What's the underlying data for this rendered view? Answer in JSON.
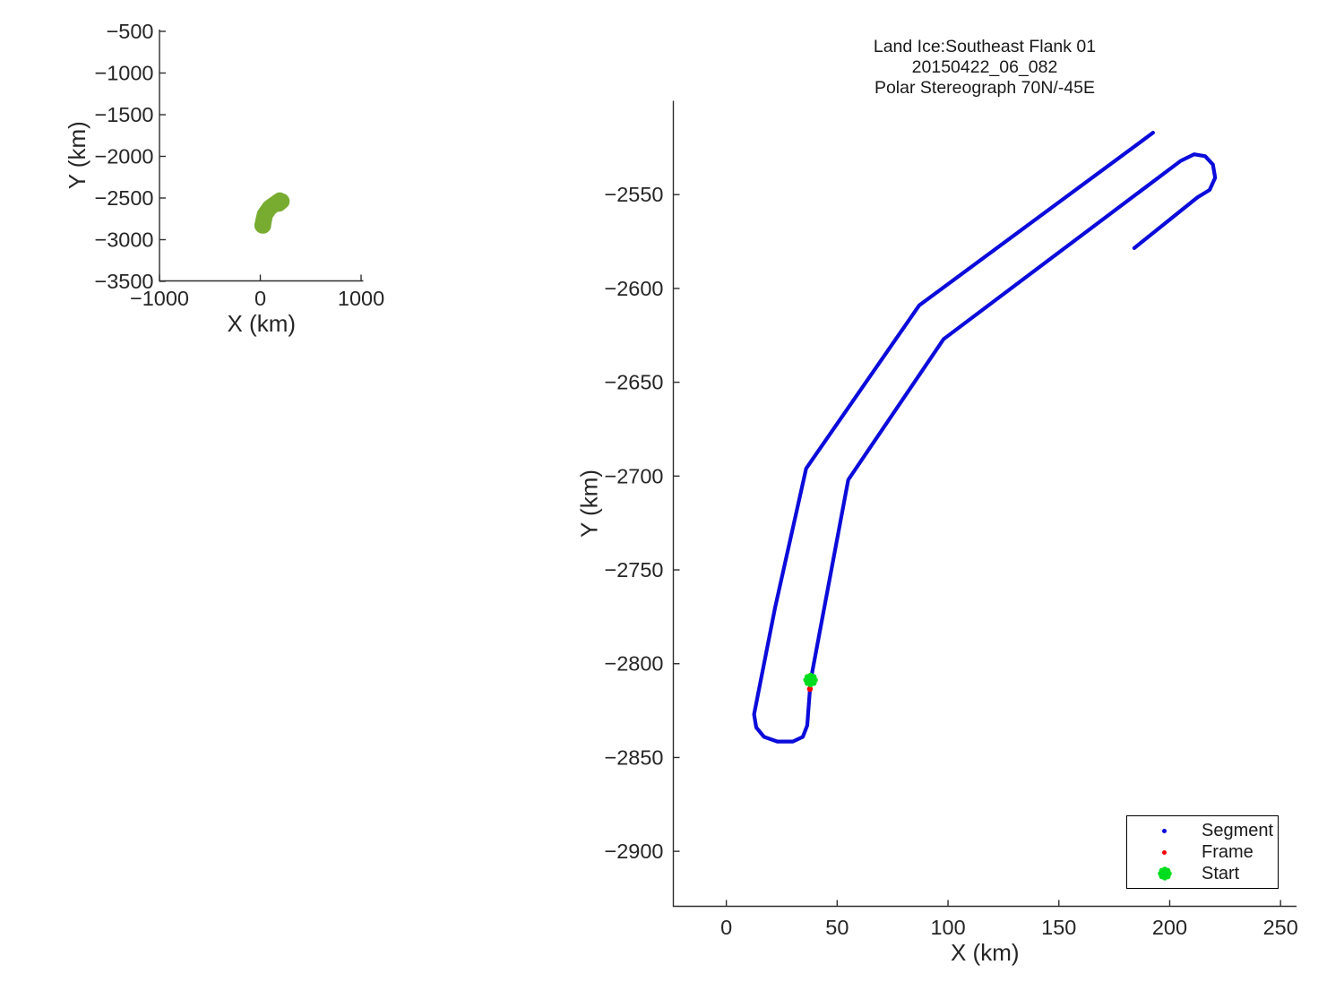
{
  "title": {
    "line1": "Land Ice:Southeast Flank 01",
    "line2": "20150422_06_082",
    "line3": "Polar Stereograph 70N/-45E"
  },
  "colors": {
    "segment": "#0b0bdb",
    "frame": "#ff0000",
    "start": "#00dd1e",
    "overview_track": "#77ac30",
    "axis": "#2e2e2e",
    "text": "#262626"
  },
  "track_points": [
    [
      192.5,
      -2517
    ],
    [
      87,
      -2609
    ],
    [
      36,
      -2696
    ],
    [
      22,
      -2770
    ],
    [
      14,
      -2818
    ],
    [
      12.5,
      -2827
    ],
    [
      13.5,
      -2834
    ],
    [
      17,
      -2839
    ],
    [
      23,
      -2841.5
    ],
    [
      30,
      -2841.5
    ],
    [
      34.5,
      -2839
    ],
    [
      36.5,
      -2833
    ],
    [
      38,
      -2809
    ],
    [
      55,
      -2702
    ],
    [
      98,
      -2627
    ],
    [
      205,
      -2532
    ],
    [
      211,
      -2528.5
    ],
    [
      216,
      -2529.5
    ],
    [
      219.5,
      -2534
    ],
    [
      220.5,
      -2541
    ],
    [
      218,
      -2547.5
    ],
    [
      212.5,
      -2551.5
    ],
    [
      184,
      -2578.5
    ]
  ],
  "start_point": [
    38,
    -2808.7
  ],
  "frame_point": [
    37.7,
    -2813.5
  ],
  "chart_data": [
    {
      "name": "overview",
      "type": "line",
      "xlabel": "X (km)",
      "ylabel": "Y (km)",
      "xlim": [
        -1000,
        1022
      ],
      "ylim": [
        -3494.6,
        -478.5
      ],
      "grid": false,
      "xticks": [
        {
          "v": -1000,
          "t": "−1000"
        },
        {
          "v": 0,
          "t": "0"
        },
        {
          "v": 1000,
          "t": "1000"
        }
      ],
      "yticks": [
        {
          "v": -500,
          "t": "−500"
        },
        {
          "v": -1000,
          "t": "−1000"
        },
        {
          "v": -1500,
          "t": "−1500"
        },
        {
          "v": -2000,
          "t": "−2000"
        },
        {
          "v": -2500,
          "t": "−2500"
        },
        {
          "v": -3000,
          "t": "−3000"
        },
        {
          "v": -3500,
          "t": "−3500"
        }
      ],
      "layout": {
        "box": {
          "l": 178,
          "r": 405.5,
          "t": 33,
          "b": 313.5
        },
        "xtick_dy": 27.5,
        "ytick_dx": 6.5,
        "xlabel_dy": 56.5,
        "ylabel_dx": 83
      },
      "series": [
        {
          "name": "overview-track-line",
          "points_ref": "track_points",
          "color": "overview_track",
          "width": 16
        }
      ],
      "markers": []
    },
    {
      "name": "main",
      "type": "line",
      "xlabel": "X (km)",
      "ylabel": "Y (km)",
      "xlim": [
        -23.9,
        257.2
      ],
      "ylim": [
        -2929.3,
        -2500.0
      ],
      "grid": false,
      "xticks": [
        {
          "v": 0,
          "t": "0"
        },
        {
          "v": 50,
          "t": "50"
        },
        {
          "v": 100,
          "t": "100"
        },
        {
          "v": 150,
          "t": "150"
        },
        {
          "v": 200,
          "t": "200"
        },
        {
          "v": 250,
          "t": "250"
        }
      ],
      "yticks": [
        {
          "v": -2550,
          "t": "−2550"
        },
        {
          "v": -2600,
          "t": "−2600"
        },
        {
          "v": -2650,
          "t": "−2650"
        },
        {
          "v": -2700,
          "t": "−2700"
        },
        {
          "v": -2750,
          "t": "−2750"
        },
        {
          "v": -2800,
          "t": "−2800"
        },
        {
          "v": -2850,
          "t": "−2850"
        },
        {
          "v": -2900,
          "t": "−2900"
        }
      ],
      "layout": {
        "box": {
          "l": 751.5,
          "r": 1447,
          "t": 112.5,
          "b": 1011.5
        },
        "xtick_dy": 31.5,
        "ytick_dx": 11,
        "xlabel_dy": 60.5,
        "ylabel_dx": 85
      },
      "series": [
        {
          "name": "segment-track-line",
          "points_ref": "track_points",
          "color": "segment",
          "width": 4.2
        }
      ],
      "markers": [
        {
          "name": "frame-marker",
          "point_ref": "frame_point",
          "shape": "dot",
          "color": "frame",
          "r": 3.2
        },
        {
          "name": "start-marker",
          "point_ref": "start_point",
          "shape": "flower",
          "color": "start",
          "r": 8.2
        }
      ],
      "legend": {
        "position": "lower right",
        "entries": [
          {
            "label": "Segment",
            "marker": "dot",
            "color": "segment"
          },
          {
            "label": "Frame",
            "marker": "dot",
            "color": "frame"
          },
          {
            "label": "Start",
            "marker": "flower",
            "color": "start"
          }
        ]
      }
    }
  ]
}
